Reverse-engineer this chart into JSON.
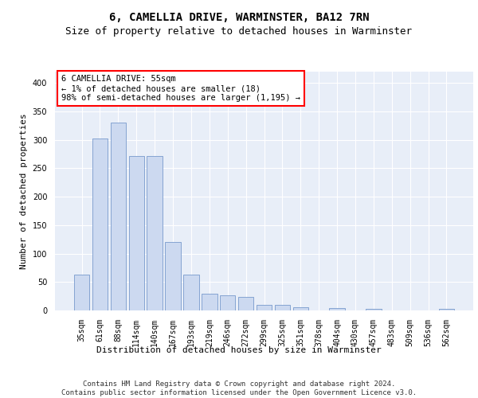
{
  "title": "6, CAMELLIA DRIVE, WARMINSTER, BA12 7RN",
  "subtitle": "Size of property relative to detached houses in Warminster",
  "xlabel": "Distribution of detached houses by size in Warminster",
  "ylabel": "Number of detached properties",
  "bar_color": "#ccd9f0",
  "bar_edge_color": "#7799cc",
  "background_color": "#e8eef8",
  "grid_color": "#ffffff",
  "categories": [
    "35sqm",
    "61sqm",
    "88sqm",
    "114sqm",
    "140sqm",
    "167sqm",
    "193sqm",
    "219sqm",
    "246sqm",
    "272sqm",
    "299sqm",
    "325sqm",
    "351sqm",
    "378sqm",
    "404sqm",
    "430sqm",
    "457sqm",
    "483sqm",
    "509sqm",
    "536sqm",
    "562sqm"
  ],
  "values": [
    63,
    303,
    330,
    272,
    272,
    120,
    63,
    29,
    27,
    24,
    10,
    10,
    5,
    0,
    4,
    0,
    3,
    0,
    0,
    0,
    3
  ],
  "ylim": [
    0,
    420
  ],
  "yticks": [
    0,
    50,
    100,
    150,
    200,
    250,
    300,
    350,
    400
  ],
  "annotation_text": "6 CAMELLIA DRIVE: 55sqm\n← 1% of detached houses are smaller (18)\n98% of semi-detached houses are larger (1,195) →",
  "footer_text": "Contains HM Land Registry data © Crown copyright and database right 2024.\nContains public sector information licensed under the Open Government Licence v3.0.",
  "title_fontsize": 10,
  "subtitle_fontsize": 9,
  "xlabel_fontsize": 8,
  "ylabel_fontsize": 8,
  "tick_fontsize": 7,
  "annotation_fontsize": 7.5,
  "footer_fontsize": 6.5
}
